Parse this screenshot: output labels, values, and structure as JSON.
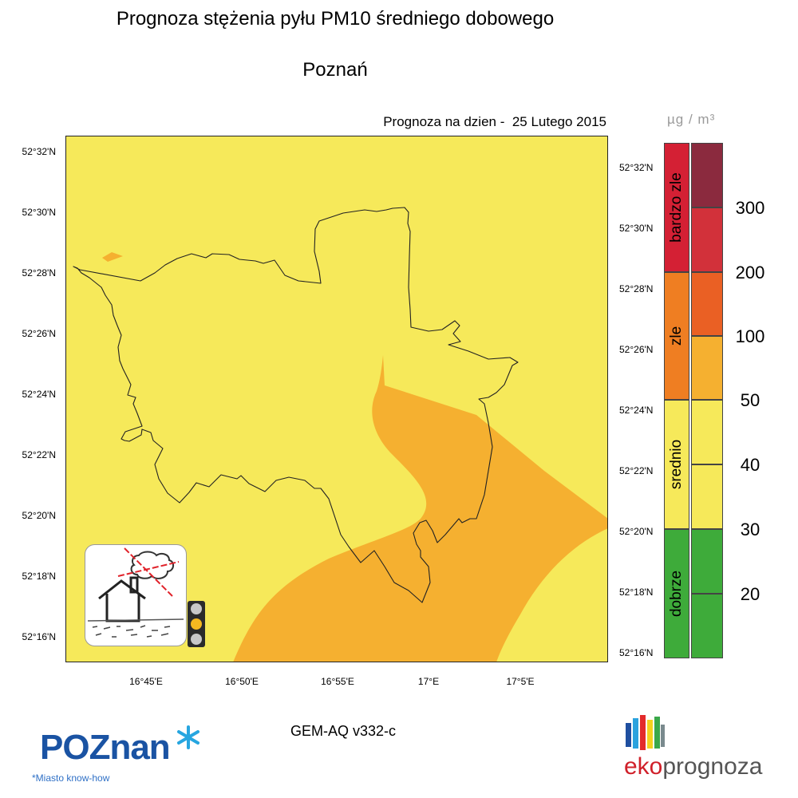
{
  "header": {
    "title": "Prognoza stężenia pyłu PM10 średniego dobowego",
    "subtitle": "Poznań",
    "forecast_date": "Prognoza na dzien -  25 Lutego 2015"
  },
  "map": {
    "lat_labels": [
      "52°32'N",
      "52°30'N",
      "52°28'N",
      "52°26'N",
      "52°24'N",
      "52°22'N",
      "52°20'N",
      "52°18'N",
      "52°16'N"
    ],
    "lon_labels": [
      "16°45'E",
      "16°50'E",
      "16°55'E",
      "17°E",
      "17°5'E"
    ],
    "background_color": "#f6e95a",
    "plume_color": "#f5b030",
    "boundary_color": "#222222"
  },
  "colorbar": {
    "unit": "µg / m³",
    "categories": [
      {
        "label": "bardzo zle",
        "color": "#d42034"
      },
      {
        "label": "zle",
        "color": "#ef7e22"
      },
      {
        "label": "srednio",
        "color": "#f6e95a"
      },
      {
        "label": "dobrze",
        "color": "#3eab3a"
      }
    ],
    "bands": [
      {
        "color": "#8b2a3e"
      },
      {
        "color": "#d2313a"
      },
      {
        "color": "#ea6024"
      },
      {
        "color": "#f5b030"
      },
      {
        "color": "#f6e95a"
      },
      {
        "color": "#f6e95a"
      },
      {
        "color": "#3eab3a"
      },
      {
        "color": "#3eab3a"
      }
    ],
    "thresholds": [
      "300",
      "200",
      "100",
      "50",
      "40",
      "30",
      "20"
    ]
  },
  "footer": {
    "model": "GEM-AQ v332-c",
    "poznan_logo": "POZnan",
    "poznan_tagline": "*Miasto know-how",
    "eko_logo_prefix": "eko",
    "eko_logo_suffix": "prognoza"
  },
  "icons": {
    "pollution_warning": "house-smoke-icon",
    "traffic_light": "traffic-light-icon"
  }
}
